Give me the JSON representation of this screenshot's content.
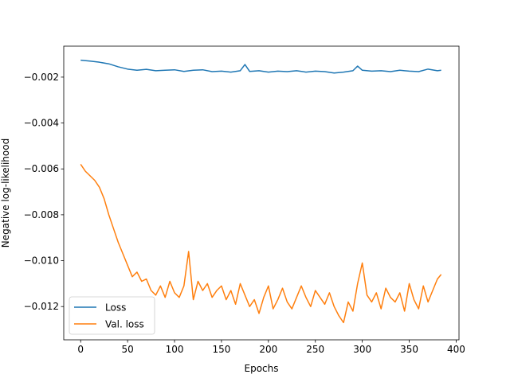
{
  "chart_data": {
    "type": "line",
    "title": "",
    "xlabel": "Epochs",
    "ylabel": "Negative log-likelihood",
    "xlim": [
      -18,
      403
    ],
    "ylim": [
      -0.01345,
      -0.00065
    ],
    "xticks": [
      0,
      50,
      100,
      150,
      200,
      250,
      300,
      350,
      400
    ],
    "xtick_labels": [
      "0",
      "50",
      "100",
      "150",
      "200",
      "250",
      "300",
      "350",
      "400"
    ],
    "yticks": [
      -0.012,
      -0.01,
      -0.008,
      -0.006,
      -0.004,
      -0.002
    ],
    "ytick_labels": [
      "−0.012",
      "−0.010",
      "−0.008",
      "−0.006",
      "−0.004",
      "−0.002"
    ],
    "grid": false,
    "legend_position": "lower-left",
    "series": [
      {
        "name": "Loss",
        "color": "#1f77b4",
        "x": [
          0,
          10,
          20,
          30,
          40,
          50,
          60,
          70,
          80,
          90,
          100,
          110,
          120,
          130,
          140,
          150,
          160,
          170,
          175,
          180,
          190,
          200,
          210,
          220,
          230,
          240,
          250,
          260,
          270,
          280,
          290,
          295,
          300,
          310,
          320,
          330,
          340,
          350,
          360,
          370,
          380,
          384
        ],
        "values": [
          -0.00126,
          -0.0013,
          -0.00135,
          -0.00142,
          -0.00155,
          -0.00165,
          -0.0017,
          -0.00166,
          -0.00172,
          -0.0017,
          -0.00168,
          -0.00175,
          -0.0017,
          -0.00168,
          -0.00176,
          -0.00174,
          -0.00178,
          -0.00172,
          -0.00145,
          -0.00175,
          -0.00172,
          -0.00178,
          -0.00174,
          -0.00176,
          -0.00172,
          -0.00178,
          -0.00174,
          -0.00176,
          -0.00182,
          -0.00178,
          -0.00172,
          -0.00152,
          -0.0017,
          -0.00174,
          -0.00172,
          -0.00176,
          -0.0017,
          -0.00174,
          -0.00176,
          -0.00165,
          -0.00172,
          -0.0017
        ]
      },
      {
        "name": "Val. loss",
        "color": "#ff7f0e",
        "x": [
          0,
          5,
          10,
          15,
          20,
          25,
          30,
          35,
          40,
          45,
          50,
          55,
          60,
          65,
          70,
          75,
          80,
          85,
          90,
          95,
          100,
          105,
          110,
          115,
          120,
          125,
          130,
          135,
          140,
          145,
          150,
          155,
          160,
          165,
          170,
          175,
          180,
          185,
          190,
          195,
          200,
          205,
          210,
          215,
          220,
          225,
          230,
          235,
          240,
          245,
          250,
          255,
          260,
          265,
          270,
          275,
          280,
          285,
          290,
          295,
          300,
          305,
          310,
          315,
          320,
          325,
          330,
          335,
          340,
          345,
          350,
          355,
          360,
          365,
          370,
          375,
          380,
          384
        ],
        "values": [
          -0.0058,
          -0.0061,
          -0.0063,
          -0.0065,
          -0.0068,
          -0.0073,
          -0.008,
          -0.0086,
          -0.0092,
          -0.0097,
          -0.0102,
          -0.0107,
          -0.0105,
          -0.0109,
          -0.0108,
          -0.0113,
          -0.0115,
          -0.0111,
          -0.0116,
          -0.0109,
          -0.0114,
          -0.0116,
          -0.0111,
          -0.0096,
          -0.0117,
          -0.0109,
          -0.0113,
          -0.011,
          -0.0116,
          -0.0113,
          -0.0111,
          -0.0117,
          -0.0113,
          -0.0119,
          -0.011,
          -0.0115,
          -0.012,
          -0.0117,
          -0.0123,
          -0.0116,
          -0.0111,
          -0.0121,
          -0.0117,
          -0.0112,
          -0.0118,
          -0.0121,
          -0.0116,
          -0.0111,
          -0.0116,
          -0.012,
          -0.0113,
          -0.0116,
          -0.0119,
          -0.0114,
          -0.012,
          -0.0124,
          -0.0127,
          -0.0118,
          -0.0122,
          -0.011,
          -0.0101,
          -0.0115,
          -0.0118,
          -0.0114,
          -0.0121,
          -0.0112,
          -0.0116,
          -0.0118,
          -0.0114,
          -0.0122,
          -0.011,
          -0.0117,
          -0.0121,
          -0.0111,
          -0.0118,
          -0.0113,
          -0.0108,
          -0.0106
        ]
      }
    ]
  }
}
